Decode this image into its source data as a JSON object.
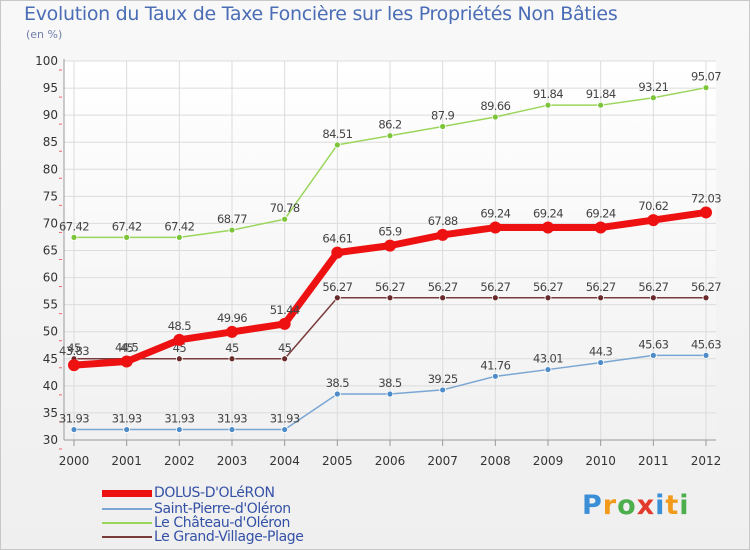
{
  "title": "Evolution du Taux de Taxe Foncière sur les Propriétés Non Bâties",
  "unit": "(en %)",
  "brand": {
    "text": "Proxiti",
    "letters": [
      "P",
      "r",
      "o",
      "x",
      "i",
      "t",
      "i"
    ],
    "colors": [
      "#3a8fd6",
      "#f29a1c",
      "#4cae4c",
      "#e23b2e",
      "#3a8fd6",
      "#f29a1c",
      "#4cae4c"
    ]
  },
  "chart_data": {
    "type": "line",
    "title": "Evolution du Taux de Taxe Foncière sur les Propriétés Non Bâties",
    "ylabel": "(en %)",
    "ylim": [
      30,
      100
    ],
    "yticks": [
      30,
      35,
      40,
      45,
      50,
      55,
      60,
      65,
      70,
      75,
      80,
      85,
      90,
      95,
      100
    ],
    "x": [
      "2000",
      "2001",
      "2002",
      "2003",
      "2004",
      "2005",
      "2006",
      "2007",
      "2008",
      "2009",
      "2010",
      "2011",
      "2012"
    ],
    "series": [
      {
        "name": "Le Château-d'Oléron",
        "color": "#9bd65c",
        "marker": "#7cc53a",
        "width": 1.5,
        "r": 3,
        "values": [
          67.42,
          67.42,
          67.42,
          68.77,
          70.78,
          84.51,
          86.2,
          87.9,
          89.66,
          91.84,
          91.84,
          93.21,
          95.07
        ],
        "labels": [
          "67.42",
          "67.42",
          "67.42",
          "68.77",
          "70.78",
          "84.51",
          "86.2",
          "87.9",
          "89.66",
          "91.84",
          "91.84",
          "93.21",
          "95.07"
        ]
      },
      {
        "name": "Le Grand-Village-Plage",
        "color": "#7a3b3b",
        "marker": "#6a2a2a",
        "width": 1.5,
        "r": 3,
        "values": [
          45,
          45,
          45,
          45,
          45,
          56.27,
          56.27,
          56.27,
          56.27,
          56.27,
          56.27,
          56.27,
          56.27
        ],
        "labels": [
          "45",
          "45",
          "45",
          "45",
          "45",
          "56.27",
          "56.27",
          "56.27",
          "56.27",
          "56.27",
          "56.27",
          "56.27",
          "56.27"
        ]
      },
      {
        "name": "Saint-Pierre-d'Oléron",
        "color": "#7aa6d3",
        "marker": "#4d8cc9",
        "width": 1.5,
        "r": 3,
        "values": [
          31.93,
          31.93,
          31.93,
          31.93,
          31.93,
          38.5,
          38.5,
          39.25,
          41.76,
          43.01,
          44.3,
          45.63,
          45.63
        ],
        "labels": [
          "31.93",
          "31.93",
          "31.93",
          "31.93",
          "31.93",
          "38.5",
          "38.5",
          "39.25",
          "41.76",
          "43.01",
          "44.3",
          "45.63",
          "45.63"
        ]
      },
      {
        "name": "DOLUS-D'OLéRON",
        "color": "#ee1111",
        "marker": "#ee1111",
        "width": 7,
        "r": 6,
        "values": [
          43.83,
          44.5,
          48.5,
          49.96,
          51.44,
          64.61,
          65.9,
          67.88,
          69.24,
          69.24,
          69.24,
          70.62,
          72.03
        ],
        "labels": [
          "43.83",
          "44.5",
          "48.5",
          "49.96",
          "51.44",
          "64.61",
          "65.9",
          "67.88",
          "69.24",
          "69.24",
          "69.24",
          "70.62",
          "72.03"
        ]
      }
    ],
    "legend": [
      "DOLUS-D'OLéRON",
      "Saint-Pierre-d'Oléron",
      "Le Château-d'Oléron",
      "Le Grand-Village-Plage"
    ],
    "legend_position": "bottom-left"
  }
}
